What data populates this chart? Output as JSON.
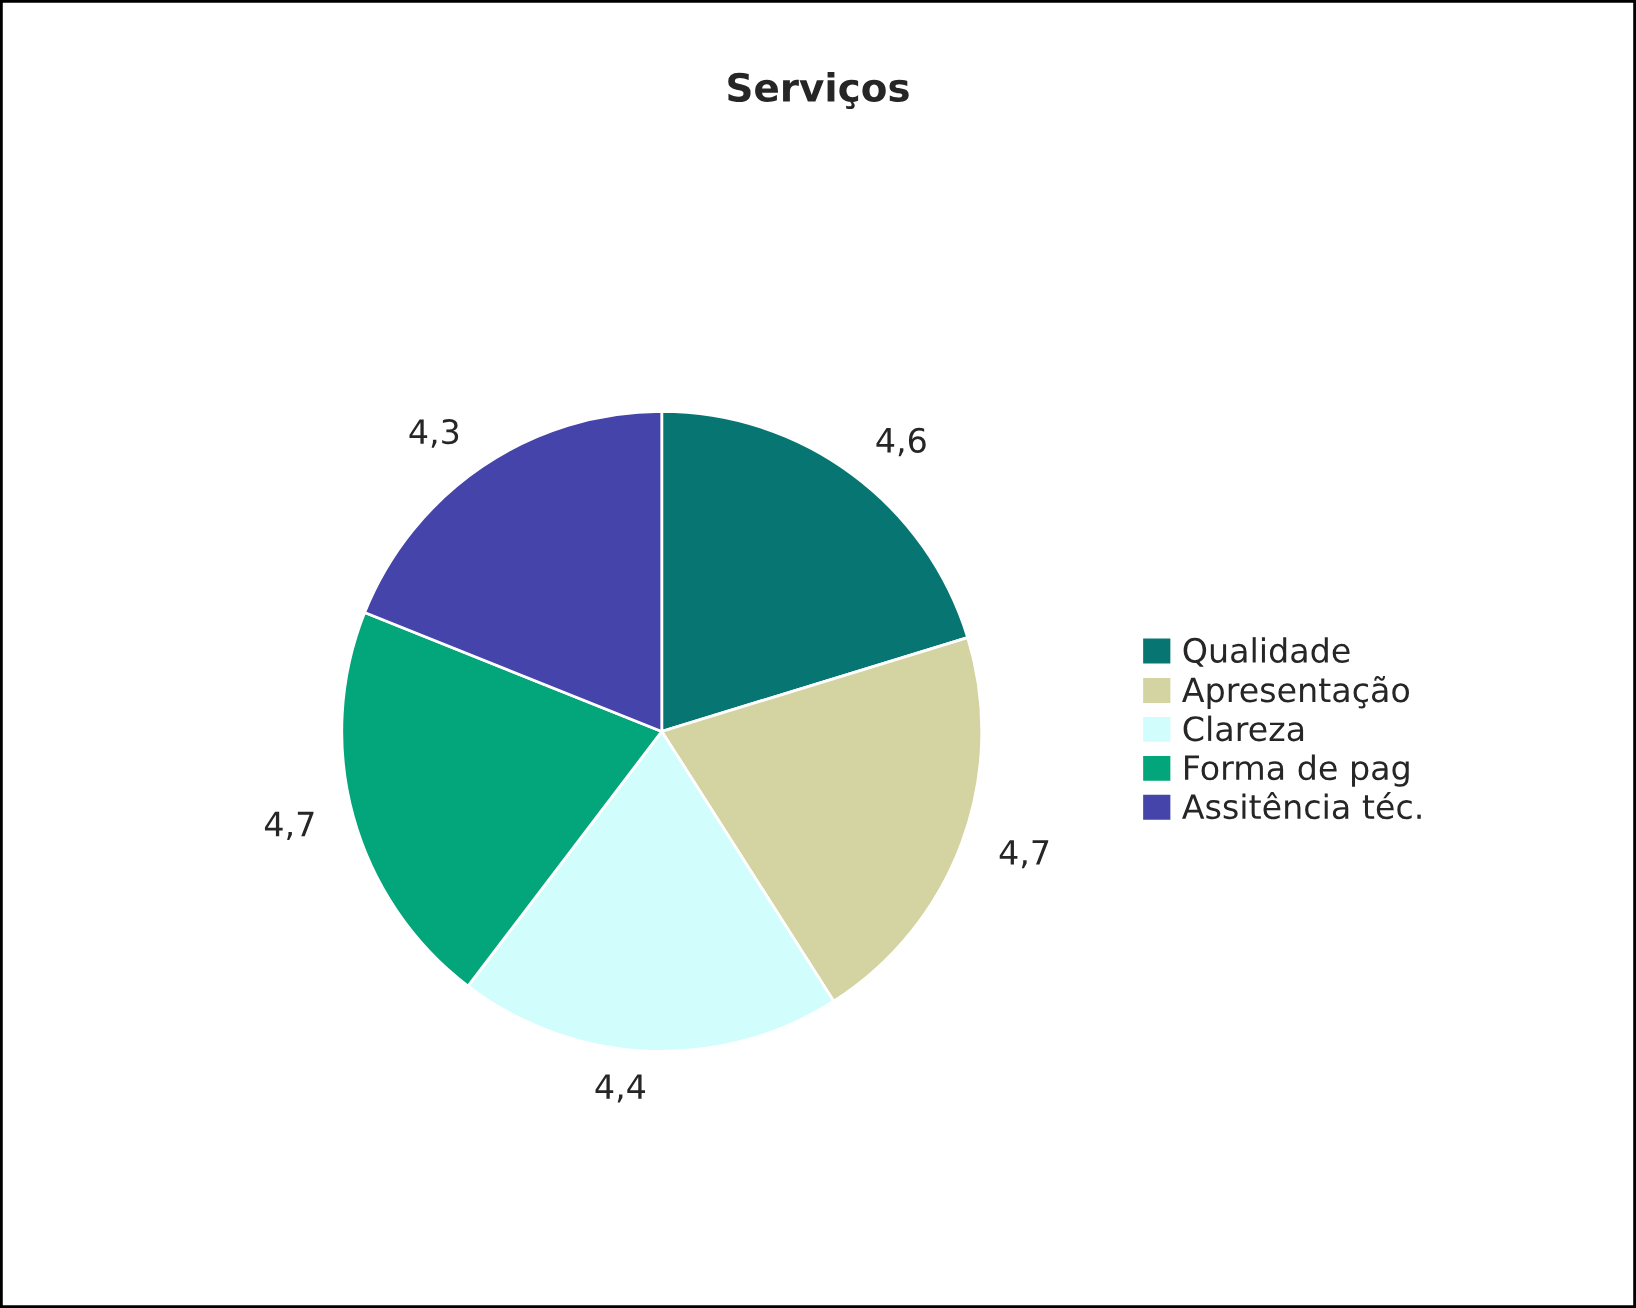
{
  "chart_data": {
    "type": "pie",
    "title": "Serviços",
    "categories": [
      "Qualidade",
      "Apresentação",
      "Clareza",
      "Forma de pag",
      "Assitência téc."
    ],
    "values": [
      4.6,
      4.7,
      4.4,
      4.7,
      4.3
    ],
    "value_labels": [
      "4,6",
      "4,7",
      "4,4",
      "4,7",
      "4,3"
    ],
    "colors": [
      "#077672",
      "#d3d4a1",
      "#d1fdfd",
      "#03a57a",
      "#4444aa"
    ],
    "legend": "right"
  }
}
